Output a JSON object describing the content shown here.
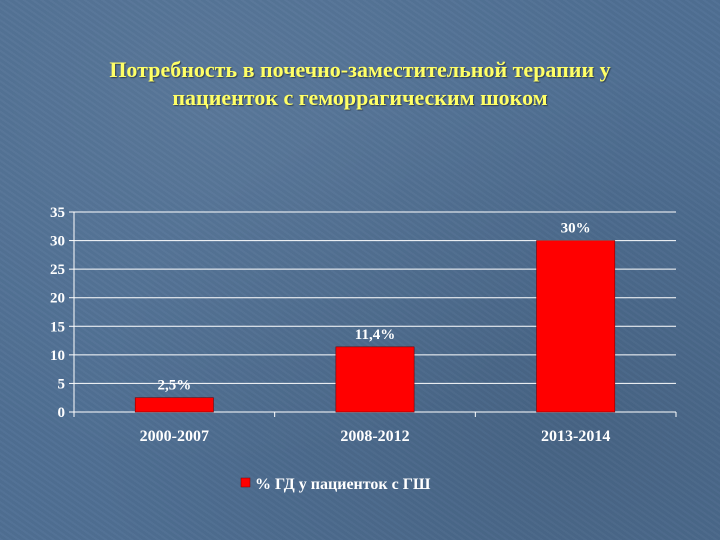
{
  "slide": {
    "title_line1": "Потребность в почечно-заместительной терапии у",
    "title_line2": "пациенток с геморрагическим шоком"
  },
  "colors": {
    "background": "#4f6f93",
    "title": "#ffff66",
    "bar": "#ff0000",
    "text": "#ffffff"
  },
  "chart_data": {
    "type": "bar",
    "title": "Потребность в почечно-заместительной терапии у пациенток с геморрагическим шоком",
    "categories": [
      "2000-2007",
      "2008-2012",
      "2013-2014"
    ],
    "series": [
      {
        "name": "% ГД у пациенток с ГШ",
        "values": [
          2.5,
          11.4,
          30
        ],
        "labels": [
          "2,5%",
          "11,4%",
          "30%"
        ],
        "color": "#ff0000"
      }
    ],
    "y_ticks": [
      0,
      5,
      10,
      15,
      20,
      25,
      30,
      35
    ],
    "ylim": [
      0,
      35
    ],
    "grid": true,
    "legend_position": "bottom"
  }
}
